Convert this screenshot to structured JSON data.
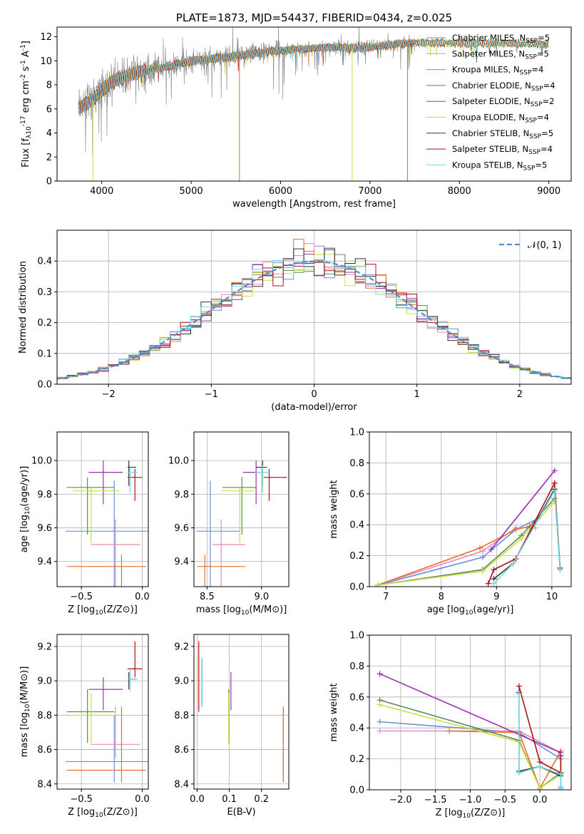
{
  "colors": {
    "miles_chabrier": "#6b8fd8",
    "miles_salpeter": "#e58ab8",
    "miles_kroupa": "#e8702a",
    "elodie_chabrier": "#5a8a5a",
    "elodie_salpeter": "#9a30b0",
    "elodie_kroupa": "#c8e040",
    "stelib_chabrier": "#333333",
    "stelib_salpeter": "#b01010",
    "stelib_kroupa": "#70d8e0",
    "observed": "#808080",
    "normal": "#5588d8"
  },
  "chart_data": [
    {
      "type": "line",
      "id": "spectrum",
      "title": "PLATE=1873, MJD=54437, FIBERID=0434, z=0.025",
      "xlabel": "wavelength [Angstrom, rest frame]",
      "ylabel": "Flux [f_λ10^-17 erg cm^-2 s^-1 A^-1]",
      "xlim": [
        3500,
        9250
      ],
      "ylim": [
        0,
        12.8
      ],
      "xticks": [
        "4000",
        "5000",
        "6000",
        "7000",
        "8000",
        "9000"
      ],
      "yticks": [
        "0",
        "2",
        "4",
        "6",
        "8",
        "10",
        "12"
      ],
      "grid": false,
      "legend_position": "right",
      "legend": [
        "Chabrier MILES, N_SSP=5",
        "Salpeter MILES, N_SSP=5",
        "Kroupa MILES, N_SSP=4",
        "Chabrier ELODIE, N_SSP=4",
        "Salpeter ELODIE, N_SSP=2",
        "Kroupa ELODIE, N_SSP=4",
        "Chabrier STELIB, N_SSP=5",
        "Salpeter STELIB, N_SSP=4",
        "Kroupa STELIB, N_SSP=5"
      ],
      "continuum": {
        "x": [
          3740,
          3800,
          3900,
          4000,
          4100,
          4300,
          4500,
          4700,
          4900,
          5100,
          5300,
          5500,
          5700,
          5900,
          6100,
          6300,
          6500,
          6700,
          6900,
          7100,
          7300,
          7500
        ],
        "y": [
          6.0,
          6.3,
          6.8,
          7.6,
          8.2,
          8.8,
          9.2,
          9.5,
          9.8,
          10.1,
          10.2,
          10.4,
          10.6,
          10.8,
          10.9,
          11.0,
          11.1,
          11.1,
          11.1,
          11.2,
          11.4,
          11.5
        ]
      },
      "model_tail": {
        "x": [
          7500,
          7800,
          8100,
          8400,
          8700,
          9000
        ],
        "y": [
          11.5,
          11.5,
          11.45,
          11.45,
          11.4,
          11.4
        ]
      }
    },
    {
      "type": "line",
      "id": "residuals",
      "xlabel": "(data-model)/error",
      "ylabel": "Normed distribution",
      "xlim": [
        -2.5,
        2.5
      ],
      "ylim": [
        0,
        0.5
      ],
      "xticks": [
        "−2",
        "−1",
        "0",
        "1",
        "2"
      ],
      "yticks": [
        "0.0",
        "0.1",
        "0.2",
        "0.3",
        "0.4"
      ],
      "grid": true,
      "legend_position": "top-right",
      "legend": [
        "𝒩(0, 1)"
      ],
      "histogram_bins": [
        -2.5,
        2.5,
        50
      ]
    },
    {
      "type": "scatter",
      "id": "age_vs_Z",
      "xlabel": "Z [log10(Z/Z⊙)]",
      "ylabel": "age [log10(age/yr)]",
      "xlim": [
        -0.7,
        0.05
      ],
      "ylim": [
        9.25,
        10.17
      ],
      "xticks": [
        "−0.5",
        "0.0"
      ],
      "yticks": [
        "9.4",
        "9.6",
        "9.8",
        "10.0"
      ],
      "grid": true,
      "points": [
        {
          "x": -0.23,
          "y": 9.58,
          "xerr": [
            0.4,
            0.3
          ],
          "yerr": [
            0.5,
            0.3
          ],
          "c": "miles_chabrier"
        },
        {
          "x": -0.22,
          "y": 9.5,
          "xerr": [
            0.2,
            0.2
          ],
          "yerr": [
            0.5,
            0.15
          ],
          "c": "miles_salpeter"
        },
        {
          "x": -0.17,
          "y": 9.37,
          "xerr": [
            0.45,
            0.2
          ],
          "yerr": [
            0.7,
            0.07
          ],
          "c": "miles_kroupa"
        },
        {
          "x": -0.45,
          "y": 9.84,
          "xerr": [
            0.17,
            0.22
          ],
          "yerr": [
            0.28,
            0.06
          ],
          "c": "elodie_chabrier"
        },
        {
          "x": -0.32,
          "y": 9.93,
          "xerr": [
            0.12,
            0.16
          ],
          "yerr": [
            0.19,
            0.07
          ],
          "c": "elodie_salpeter"
        },
        {
          "x": -0.42,
          "y": 9.82,
          "xerr": [
            0.15,
            0.23
          ],
          "yerr": [
            0.31,
            0.02
          ],
          "c": "elodie_kroupa"
        },
        {
          "x": -0.11,
          "y": 9.96,
          "xerr": [
            0.01,
            0.06
          ],
          "yerr": [
            0.11,
            0.04
          ],
          "c": "stelib_chabrier"
        },
        {
          "x": -0.06,
          "y": 9.9,
          "xerr": [
            0.06,
            0.06
          ],
          "yerr": [
            0.14,
            0.05
          ],
          "c": "stelib_salpeter"
        },
        {
          "x": -0.1,
          "y": 9.93,
          "xerr": [
            0.02,
            0.06
          ],
          "yerr": [
            0.12,
            0.04
          ],
          "c": "stelib_kroupa"
        }
      ]
    },
    {
      "type": "scatter",
      "id": "age_vs_mass",
      "xlabel": "mass [log10(M/M⊙)]",
      "ylabel": "",
      "xlim": [
        8.38,
        9.25
      ],
      "ylim": [
        9.25,
        10.17
      ],
      "xticks": [
        "8.5",
        "9.0"
      ],
      "yticks": [
        "9.4",
        "9.6",
        "9.8",
        "10.0"
      ],
      "grid": true,
      "points": [
        {
          "x": 8.53,
          "y": 9.58,
          "xerr": [
            0.13,
            0.27
          ],
          "yerr": [
            0.5,
            0.3
          ],
          "c": "miles_chabrier"
        },
        {
          "x": 8.63,
          "y": 9.5,
          "xerr": [
            0.08,
            0.22
          ],
          "yerr": [
            0.5,
            0.15
          ],
          "c": "miles_salpeter"
        },
        {
          "x": 8.48,
          "y": 9.37,
          "xerr": [
            0.07,
            0.37
          ],
          "yerr": [
            0.7,
            0.07
          ],
          "c": "miles_kroupa"
        },
        {
          "x": 8.82,
          "y": 9.84,
          "xerr": [
            0.18,
            0.13
          ],
          "yerr": [
            0.28,
            0.06
          ],
          "c": "elodie_chabrier"
        },
        {
          "x": 8.95,
          "y": 9.93,
          "xerr": [
            0.12,
            0.07
          ],
          "yerr": [
            0.19,
            0.07
          ],
          "c": "elodie_salpeter"
        },
        {
          "x": 8.8,
          "y": 9.82,
          "xerr": [
            0.17,
            0.13
          ],
          "yerr": [
            0.31,
            0.02
          ],
          "c": "elodie_kroupa"
        },
        {
          "x": 9.01,
          "y": 9.96,
          "xerr": [
            0.06,
            0.04
          ],
          "yerr": [
            0.11,
            0.04
          ],
          "c": "stelib_chabrier"
        },
        {
          "x": 9.07,
          "y": 9.9,
          "xerr": [
            0.05,
            0.16
          ],
          "yerr": [
            0.14,
            0.05
          ],
          "c": "stelib_salpeter"
        },
        {
          "x": 9.01,
          "y": 9.93,
          "xerr": [
            0.07,
            0.06
          ],
          "yerr": [
            0.12,
            0.04
          ],
          "c": "stelib_kroupa"
        }
      ]
    },
    {
      "type": "line",
      "id": "mass_weight_vs_age",
      "xlabel": "age  [log10(age/yr)]",
      "ylabel": "mass weight",
      "xlim": [
        6.7,
        10.35
      ],
      "ylim": [
        0,
        1.0
      ],
      "xticks": [
        "7",
        "8",
        "9",
        "10"
      ],
      "yticks": [
        "0.0",
        "0.2",
        "0.4",
        "0.6",
        "0.8",
        "1.0"
      ],
      "grid": true,
      "series": [
        {
          "c": "miles_chabrier",
          "x": [
            6.85,
            8.75,
            9.35,
            9.75,
            10.05,
            10.15
          ],
          "y": [
            0.01,
            0.19,
            0.37,
            0.44,
            0.63,
            0.12
          ]
        },
        {
          "c": "miles_salpeter",
          "x": [
            6.85,
            8.75,
            9.35,
            9.7
          ],
          "y": [
            0.01,
            0.23,
            0.38,
            0.38
          ]
        },
        {
          "c": "miles_kroupa",
          "x": [
            6.85,
            8.7,
            9.35,
            9.6
          ],
          "y": [
            0.01,
            0.25,
            0.37,
            0.39
          ]
        },
        {
          "c": "elodie_chabrier",
          "x": [
            6.85,
            8.75,
            9.45,
            10.05
          ],
          "y": [
            0.01,
            0.11,
            0.33,
            0.57
          ]
        },
        {
          "c": "elodie_salpeter",
          "x": [
            8.9,
            10.05
          ],
          "y": [
            0.24,
            0.75
          ]
        },
        {
          "c": "elodie_kroupa",
          "x": [
            6.85,
            8.75,
            9.45,
            10.05
          ],
          "y": [
            0.01,
            0.1,
            0.31,
            0.55
          ]
        },
        {
          "c": "stelib_chabrier",
          "x": [
            8.95,
            9.3,
            10.05,
            10.15
          ],
          "y": [
            0.05,
            0.15,
            0.63,
            0.12
          ]
        },
        {
          "c": "stelib_salpeter",
          "x": [
            8.85,
            8.95,
            9.35,
            10.05,
            10.15
          ],
          "y": [
            0.02,
            0.11,
            0.18,
            0.67,
            0.11
          ]
        },
        {
          "c": "stelib_kroupa",
          "x": [
            8.95,
            9.3,
            10.05,
            10.15
          ],
          "y": [
            0.02,
            0.15,
            0.62,
            0.11
          ]
        }
      ]
    },
    {
      "type": "scatter",
      "id": "mass_vs_Z",
      "xlabel": "Z [log10(Z/Z⊙)]",
      "ylabel": "mass [log10(M/M⊙)]",
      "xlim": [
        -0.7,
        0.05
      ],
      "ylim": [
        8.37,
        9.27
      ],
      "xticks": [
        "−0.5",
        "0.0"
      ],
      "yticks": [
        "8.4",
        "8.6",
        "8.8",
        "9.0",
        "9.2"
      ],
      "grid": true,
      "points": [
        {
          "x": -0.23,
          "y": 8.53,
          "xerr": [
            0.4,
            0.3
          ],
          "yerr": [
            0.12,
            0.27
          ],
          "c": "miles_chabrier"
        },
        {
          "x": -0.22,
          "y": 8.63,
          "xerr": [
            0.2,
            0.2
          ],
          "yerr": [
            0.08,
            0.22
          ],
          "c": "miles_salpeter"
        },
        {
          "x": -0.17,
          "y": 8.48,
          "xerr": [
            0.45,
            0.2
          ],
          "yerr": [
            0.07,
            0.37
          ],
          "c": "miles_kroupa"
        },
        {
          "x": -0.45,
          "y": 8.82,
          "xerr": [
            0.17,
            0.22
          ],
          "yerr": [
            0.18,
            0.13
          ],
          "c": "elodie_chabrier"
        },
        {
          "x": -0.32,
          "y": 8.95,
          "xerr": [
            0.12,
            0.16
          ],
          "yerr": [
            0.12,
            0.07
          ],
          "c": "elodie_salpeter"
        },
        {
          "x": -0.42,
          "y": 8.8,
          "xerr": [
            0.15,
            0.23
          ],
          "yerr": [
            0.17,
            0.13
          ],
          "c": "elodie_kroupa"
        },
        {
          "x": -0.11,
          "y": 9.01,
          "xerr": [
            0.01,
            0.06
          ],
          "yerr": [
            0.06,
            0.04
          ],
          "c": "stelib_chabrier"
        },
        {
          "x": -0.06,
          "y": 9.07,
          "xerr": [
            0.06,
            0.06
          ],
          "yerr": [
            0.05,
            0.16
          ],
          "c": "stelib_salpeter"
        },
        {
          "x": -0.1,
          "y": 9.01,
          "xerr": [
            0.02,
            0.06
          ],
          "yerr": [
            0.07,
            0.06
          ],
          "c": "stelib_kroupa"
        }
      ]
    },
    {
      "type": "scatter",
      "id": "mass_vs_ebv",
      "xlabel": "E(B-V)",
      "ylabel": "",
      "xlim": [
        -0.01,
        0.285
      ],
      "ylim": [
        8.37,
        9.27
      ],
      "xticks": [
        "0.0",
        "0.1",
        "0.2"
      ],
      "yticks": [
        "8.4",
        "8.6",
        "8.8",
        "9.0",
        "9.2"
      ],
      "grid": true,
      "points": [
        {
          "x": 0.268,
          "y": 8.53,
          "xerr": [
            0,
            0
          ],
          "yerr": [
            0.12,
            0.27
          ],
          "c": "miles_chabrier"
        },
        {
          "x": 0.268,
          "y": 8.63,
          "xerr": [
            0,
            0
          ],
          "yerr": [
            0.08,
            0.22
          ],
          "c": "miles_salpeter"
        },
        {
          "x": 0.268,
          "y": 8.48,
          "xerr": [
            0,
            0
          ],
          "yerr": [
            0.07,
            0.37
          ],
          "c": "miles_kroupa"
        },
        {
          "x": 0.098,
          "y": 8.82,
          "xerr": [
            0,
            0
          ],
          "yerr": [
            0.18,
            0.13
          ],
          "c": "elodie_chabrier"
        },
        {
          "x": 0.105,
          "y": 8.95,
          "xerr": [
            0,
            0
          ],
          "yerr": [
            0.12,
            0.1
          ],
          "c": "elodie_salpeter"
        },
        {
          "x": 0.098,
          "y": 8.8,
          "xerr": [
            0,
            0
          ],
          "yerr": [
            0.17,
            0.13
          ],
          "c": "elodie_kroupa"
        },
        {
          "x": 0.015,
          "y": 9.01,
          "xerr": [
            0,
            0
          ],
          "yerr": [
            0.16,
            0.12
          ],
          "c": "stelib_chabrier"
        },
        {
          "x": 0.005,
          "y": 9.07,
          "xerr": [
            0,
            0
          ],
          "yerr": [
            0.25,
            0.16
          ],
          "c": "stelib_salpeter"
        },
        {
          "x": 0.015,
          "y": 9.01,
          "xerr": [
            0,
            0
          ],
          "yerr": [
            0.16,
            0.12
          ],
          "c": "stelib_kroupa"
        }
      ]
    },
    {
      "type": "line",
      "id": "mass_weight_vs_Z",
      "xlabel": "Z [log10(Z/Z⊙)]",
      "ylabel": "mass weight",
      "xlim": [
        -2.45,
        0.45
      ],
      "ylim": [
        0,
        1.0
      ],
      "xticks": [
        "−2.0",
        "−1.5",
        "−1.0",
        "−0.5",
        "0.0"
      ],
      "yticks": [
        "0.0",
        "0.2",
        "0.4",
        "0.6",
        "0.8",
        "1.0"
      ],
      "grid": true,
      "series": [
        {
          "c": "miles_chabrier",
          "x": [
            -2.3,
            -0.3,
            0.3,
            0.3
          ],
          "y": [
            0.44,
            0.37,
            0.2,
            0.01
          ]
        },
        {
          "c": "miles_salpeter",
          "x": [
            -2.3,
            -0.3,
            0.3
          ],
          "y": [
            0.38,
            0.38,
            0.24
          ]
        },
        {
          "c": "miles_kroupa",
          "x": [
            -1.3,
            -0.3,
            0.0,
            0.3
          ],
          "y": [
            0.38,
            0.37,
            0.01,
            0.25
          ]
        },
        {
          "c": "elodie_chabrier",
          "x": [
            -2.3,
            -0.3,
            0.0,
            0.3
          ],
          "y": [
            0.58,
            0.32,
            0.01,
            0.11
          ]
        },
        {
          "c": "elodie_salpeter",
          "x": [
            -2.3,
            0.3
          ],
          "y": [
            0.75,
            0.24
          ]
        },
        {
          "c": "elodie_kroupa",
          "x": [
            -2.3,
            -0.3,
            0.0,
            0.3
          ],
          "y": [
            0.55,
            0.31,
            0.01,
            0.1
          ]
        },
        {
          "c": "stelib_chabrier",
          "x": [
            -0.3,
            -0.3,
            0.0,
            0.3
          ],
          "y": [
            0.63,
            0.12,
            0.15,
            0.09
          ]
        },
        {
          "c": "stelib_salpeter",
          "x": [
            -0.3,
            0.0,
            0.3,
            0.3
          ],
          "y": [
            0.67,
            0.18,
            0.11,
            0.22
          ]
        },
        {
          "c": "stelib_kroupa",
          "x": [
            -0.3,
            -0.3,
            0.0,
            0.3,
            0.3
          ],
          "y": [
            0.62,
            0.11,
            0.15,
            0.1,
            0.02
          ]
        }
      ]
    }
  ]
}
